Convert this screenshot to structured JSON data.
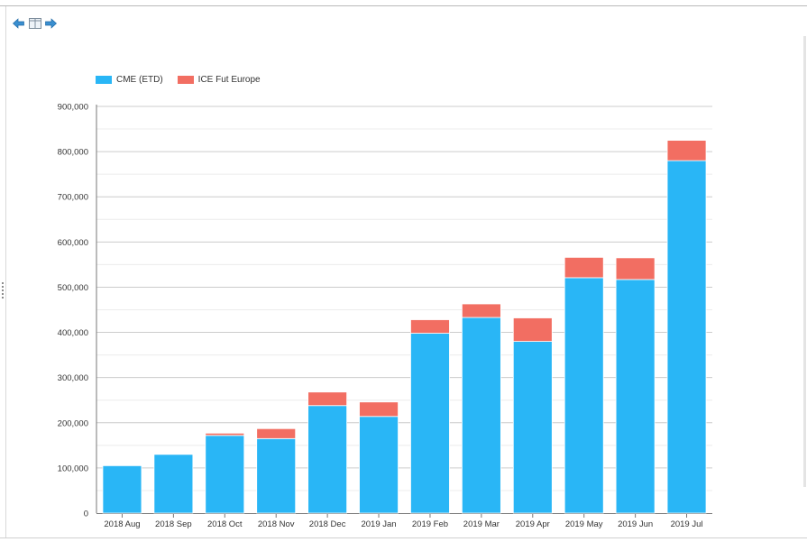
{
  "toolbar": {
    "back_icon": "arrow-left-icon",
    "view_icon": "split-view-icon",
    "forward_icon": "arrow-right-icon"
  },
  "colors": {
    "cme": "#29b6f6",
    "ice": "#f26e62",
    "grid": "#cccccc",
    "axis": "#777777"
  },
  "chart_data": {
    "type": "bar",
    "stacked": true,
    "categories": [
      "2018 Aug",
      "2018 Sep",
      "2018 Oct",
      "2018 Nov",
      "2018 Dec",
      "2019 Jan",
      "2019 Feb",
      "2019 Mar",
      "2019 Apr",
      "2019 May",
      "2019 Jun",
      "2019 Jul"
    ],
    "series": [
      {
        "name": "CME (ETD)",
        "color": "#29b6f6",
        "values": [
          105000,
          130000,
          172000,
          165000,
          238000,
          214000,
          398000,
          433000,
          380000,
          521000,
          517000,
          780000
        ]
      },
      {
        "name": "ICE Fut Europe",
        "color": "#f26e62",
        "values": [
          0,
          0,
          5000,
          22000,
          30000,
          32000,
          30000,
          30000,
          52000,
          45000,
          48000,
          45000
        ]
      }
    ],
    "ylim": [
      0,
      900000
    ],
    "yticks": [
      0,
      100000,
      200000,
      300000,
      400000,
      500000,
      600000,
      700000,
      800000,
      900000
    ],
    "ytick_labels": [
      "0",
      "100,000",
      "200,000",
      "300,000",
      "400,000",
      "500,000",
      "600,000",
      "700,000",
      "800,000",
      "900,000"
    ],
    "grid": true,
    "legend_position": "top-left",
    "title": "",
    "xlabel": "",
    "ylabel": ""
  }
}
